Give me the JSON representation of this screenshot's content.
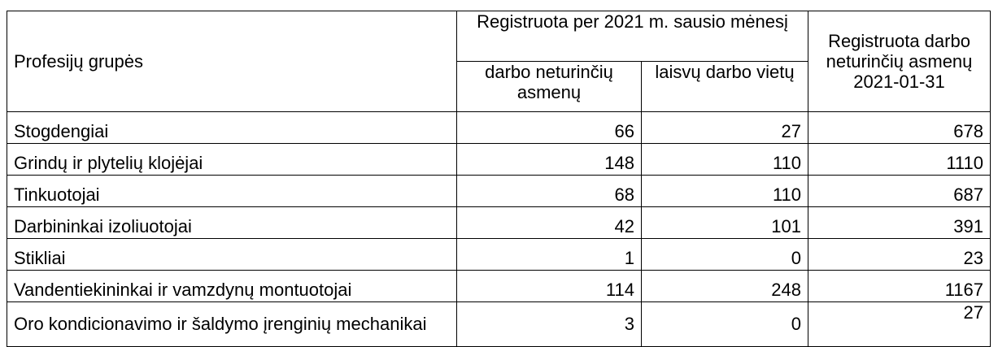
{
  "headers": {
    "profession": "Profesijų grupės",
    "registered_group": "Registruota per 2021 m. sausio mėnesį",
    "unemployed": "darbo neturinčių asmenų",
    "vacancies": "laisvų darbo vietų",
    "registered_total": "Registruota darbo neturinčių asmenų 2021-01-31"
  },
  "rows": [
    {
      "name": "Stogdengiai",
      "unemployed": "66",
      "vacancies": "27",
      "total": "678"
    },
    {
      "name": "Grindų ir plytelių klojėjai",
      "unemployed": "148",
      "vacancies": "110",
      "total": "1110"
    },
    {
      "name": "Tinkuotojai",
      "unemployed": "68",
      "vacancies": "110",
      "total": "687"
    },
    {
      "name": "Darbininkai izoliuotojai",
      "unemployed": "42",
      "vacancies": "101",
      "total": "391"
    },
    {
      "name": "Stikliai",
      "unemployed": "1",
      "vacancies": "0",
      "total": "23"
    },
    {
      "name": "Vandentiekininkai ir vamzdynų montuotojai",
      "unemployed": "114",
      "vacancies": "248",
      "total": "1167"
    },
    {
      "name": "Oro kondicionavimo ir šaldymo įrenginių mechanikai",
      "unemployed": "3",
      "vacancies": "0",
      "total": "27"
    }
  ]
}
